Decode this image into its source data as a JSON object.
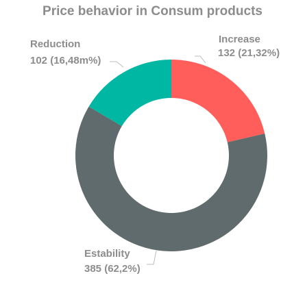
{
  "chart_data": {
    "type": "pie",
    "donut": true,
    "title": "Price behavior in Consum products",
    "slices": [
      {
        "name": "Increase",
        "value": 132,
        "label": "132 (21,32%)",
        "color": "#ff5e5b"
      },
      {
        "name": "Estability",
        "value": 385,
        "label": "385 (62,2%)",
        "color": "#5f6b6d"
      },
      {
        "name": "Reduction",
        "value": 102,
        "label": "102 (16,48m%)",
        "color": "#00b7a4"
      }
    ],
    "legend": "none"
  }
}
